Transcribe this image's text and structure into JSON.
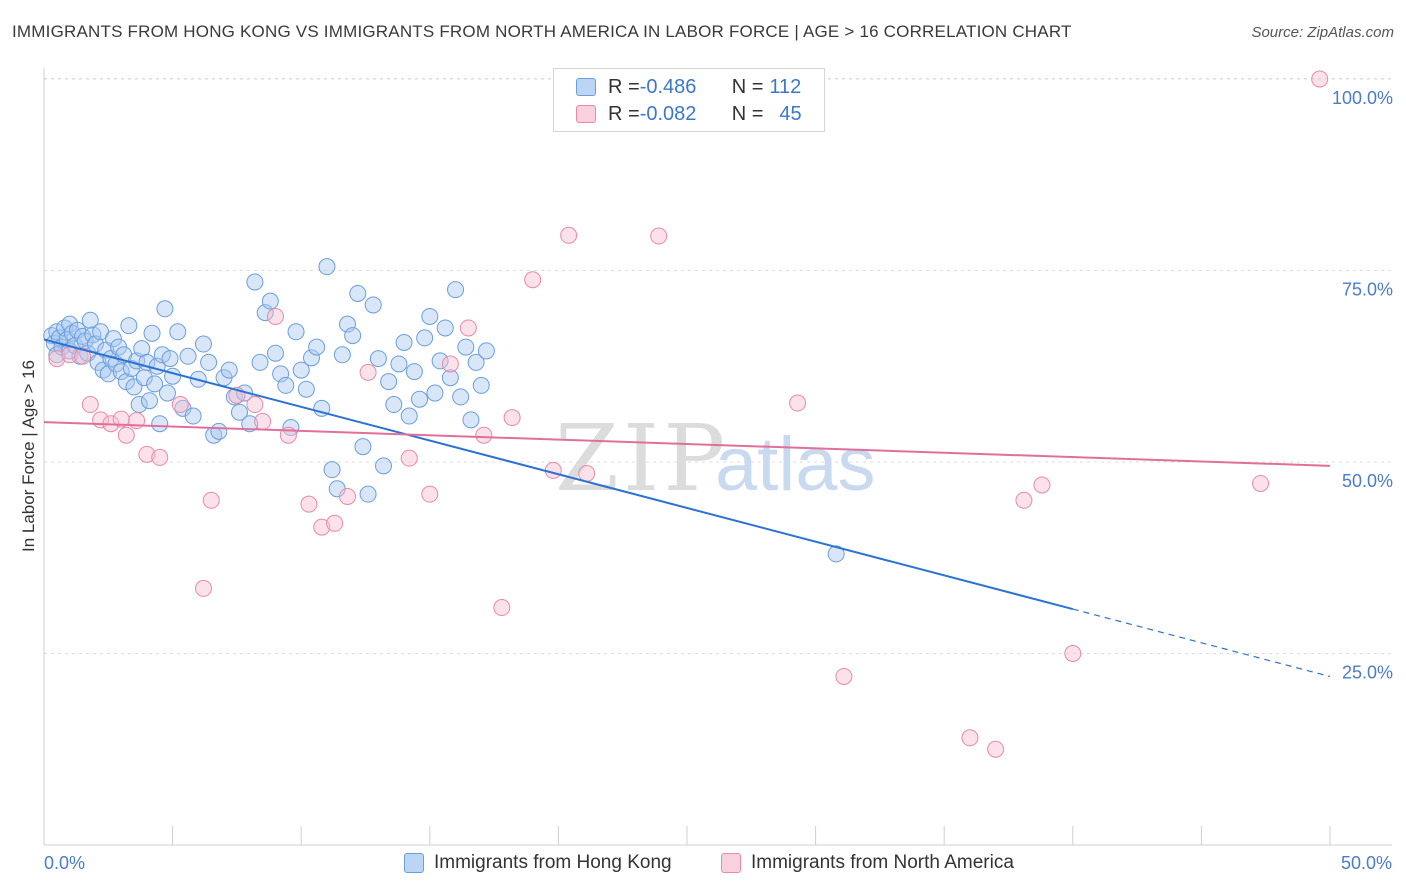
{
  "title": "IMMIGRANTS FROM HONG KONG VS IMMIGRANTS FROM NORTH AMERICA IN LABOR FORCE | AGE > 16 CORRELATION CHART",
  "source": "Source: ZipAtlas.com",
  "watermark": {
    "zip": "ZIP",
    "atlas": "atlas"
  },
  "legend": {
    "rows": [
      {
        "r_label": "R = ",
        "r_value": "-0.486",
        "n_label": "N = ",
        "n_value": "112"
      },
      {
        "r_label": "R = ",
        "r_value": "-0.082",
        "n_label": "N = ",
        "n_value": "45"
      }
    ]
  },
  "colors": {
    "blue_fill": "#a8c8f0",
    "blue_stroke": "#6a9fdc",
    "blue_line": "#2a72d4",
    "pink_fill": "#f6bfd0",
    "pink_stroke": "#e88aa8",
    "pink_line": "#e0709a",
    "axis_text": "#4a7cc8",
    "grid": "#dcdcdc"
  },
  "chart_data": {
    "type": "scatter",
    "title": "IMMIGRANTS FROM HONG KONG VS IMMIGRANTS FROM NORTH AMERICA IN LABOR FORCE | AGE > 16 CORRELATION CHART",
    "xlabel": "",
    "ylabel": "In Labor Force | Age > 16",
    "xlim": [
      0,
      50
    ],
    "ylim": [
      0,
      102
    ],
    "x_tick_labels": [
      {
        "value": 0,
        "label": "0.0%"
      },
      {
        "value": 50,
        "label": "50.0%"
      }
    ],
    "y_tick_labels": [
      {
        "value": 25,
        "label": "25.0%"
      },
      {
        "value": 50,
        "label": "50.0%"
      },
      {
        "value": 75,
        "label": "75.0%"
      },
      {
        "value": 100,
        "label": "100.0%"
      }
    ],
    "series": [
      {
        "name": "Immigrants from Hong Kong",
        "color": "blue",
        "trend": {
          "x": [
            0,
            40
          ],
          "y": [
            66.0,
            30.8
          ],
          "dashed_to": {
            "x": 50,
            "y": 22.0
          }
        },
        "points": [
          [
            0.3,
            66.5
          ],
          [
            0.4,
            65.5
          ],
          [
            0.5,
            67.0
          ],
          [
            0.5,
            64.0
          ],
          [
            0.6,
            66.2
          ],
          [
            0.7,
            65.0
          ],
          [
            0.8,
            67.5
          ],
          [
            0.9,
            66.0
          ],
          [
            1.0,
            64.5
          ],
          [
            1.0,
            68.0
          ],
          [
            1.1,
            66.8
          ],
          [
            1.2,
            65.2
          ],
          [
            1.3,
            67.2
          ],
          [
            1.4,
            63.8
          ],
          [
            1.5,
            66.4
          ],
          [
            1.6,
            65.8
          ],
          [
            1.7,
            64.2
          ],
          [
            1.8,
            68.5
          ],
          [
            1.9,
            66.6
          ],
          [
            2.0,
            65.4
          ],
          [
            2.1,
            63.0
          ],
          [
            2.2,
            67.0
          ],
          [
            2.3,
            62.0
          ],
          [
            2.4,
            64.6
          ],
          [
            2.5,
            61.5
          ],
          [
            2.6,
            63.5
          ],
          [
            2.7,
            66.1
          ],
          [
            2.8,
            62.8
          ],
          [
            2.9,
            65.0
          ],
          [
            3.0,
            61.8
          ],
          [
            3.1,
            64.0
          ],
          [
            3.2,
            60.5
          ],
          [
            3.3,
            67.8
          ],
          [
            3.4,
            62.2
          ],
          [
            3.5,
            59.8
          ],
          [
            3.6,
            63.2
          ],
          [
            3.7,
            57.5
          ],
          [
            3.8,
            64.8
          ],
          [
            3.9,
            61.0
          ],
          [
            4.0,
            63.0
          ],
          [
            4.1,
            58.0
          ],
          [
            4.2,
            66.8
          ],
          [
            4.3,
            60.2
          ],
          [
            4.4,
            62.5
          ],
          [
            4.5,
            55.0
          ],
          [
            4.6,
            64.0
          ],
          [
            4.7,
            70.0
          ],
          [
            4.8,
            59.0
          ],
          [
            4.9,
            63.5
          ],
          [
            5.0,
            61.2
          ],
          [
            5.2,
            67.0
          ],
          [
            5.4,
            57.0
          ],
          [
            5.6,
            63.8
          ],
          [
            5.8,
            56.0
          ],
          [
            6.0,
            60.8
          ],
          [
            6.2,
            65.4
          ],
          [
            6.4,
            63.0
          ],
          [
            6.6,
            53.5
          ],
          [
            6.8,
            54.0
          ],
          [
            7.0,
            61.0
          ],
          [
            7.2,
            62.0
          ],
          [
            7.4,
            58.5
          ],
          [
            7.6,
            56.5
          ],
          [
            7.8,
            59.0
          ],
          [
            8.0,
            55.0
          ],
          [
            8.2,
            73.5
          ],
          [
            8.4,
            63.0
          ],
          [
            8.6,
            69.5
          ],
          [
            8.8,
            71.0
          ],
          [
            9.0,
            64.2
          ],
          [
            9.2,
            61.5
          ],
          [
            9.4,
            60.0
          ],
          [
            9.6,
            54.5
          ],
          [
            9.8,
            67.0
          ],
          [
            10.0,
            62.0
          ],
          [
            10.2,
            59.5
          ],
          [
            10.4,
            63.6
          ],
          [
            10.6,
            65.0
          ],
          [
            10.8,
            57.0
          ],
          [
            11.0,
            75.5
          ],
          [
            11.2,
            49.0
          ],
          [
            11.4,
            46.5
          ],
          [
            11.6,
            64.0
          ],
          [
            11.8,
            68.0
          ],
          [
            12.0,
            66.5
          ],
          [
            12.2,
            72.0
          ],
          [
            12.4,
            52.0
          ],
          [
            12.6,
            45.8
          ],
          [
            12.8,
            70.5
          ],
          [
            13.0,
            63.5
          ],
          [
            13.2,
            49.5
          ],
          [
            13.4,
            60.5
          ],
          [
            13.6,
            57.5
          ],
          [
            13.8,
            62.8
          ],
          [
            14.0,
            65.6
          ],
          [
            14.2,
            56.0
          ],
          [
            14.4,
            61.8
          ],
          [
            14.6,
            58.2
          ],
          [
            14.8,
            66.2
          ],
          [
            15.0,
            69.0
          ],
          [
            15.2,
            59.0
          ],
          [
            15.4,
            63.2
          ],
          [
            15.6,
            67.5
          ],
          [
            15.8,
            61.0
          ],
          [
            16.0,
            72.5
          ],
          [
            16.2,
            58.5
          ],
          [
            16.4,
            65.0
          ],
          [
            16.6,
            55.5
          ],
          [
            16.8,
            63.0
          ],
          [
            17.0,
            60.0
          ],
          [
            17.2,
            64.5
          ],
          [
            30.8,
            38.0
          ]
        ]
      },
      {
        "name": "Immigrants from North America",
        "color": "pink",
        "trend": {
          "x": [
            0,
            50
          ],
          "y": [
            55.2,
            49.5
          ]
        },
        "points": [
          [
            0.5,
            63.5
          ],
          [
            1.0,
            64.0
          ],
          [
            1.5,
            63.8
          ],
          [
            1.8,
            57.5
          ],
          [
            2.2,
            55.5
          ],
          [
            2.6,
            55.0
          ],
          [
            3.2,
            53.5
          ],
          [
            3.6,
            55.4
          ],
          [
            4.0,
            51.0
          ],
          [
            4.5,
            50.6
          ],
          [
            5.3,
            57.5
          ],
          [
            6.2,
            33.5
          ],
          [
            6.5,
            45.0
          ],
          [
            7.5,
            58.7
          ],
          [
            8.2,
            57.5
          ],
          [
            8.5,
            55.3
          ],
          [
            9.0,
            69.0
          ],
          [
            9.5,
            53.5
          ],
          [
            10.3,
            44.5
          ],
          [
            10.8,
            41.5
          ],
          [
            11.3,
            42.0
          ],
          [
            11.8,
            45.5
          ],
          [
            12.6,
            61.7
          ],
          [
            14.2,
            50.5
          ],
          [
            15.0,
            45.8
          ],
          [
            15.8,
            62.8
          ],
          [
            16.5,
            67.5
          ],
          [
            17.1,
            53.5
          ],
          [
            18.2,
            55.8
          ],
          [
            17.8,
            31.0
          ],
          [
            19.0,
            73.8
          ],
          [
            19.8,
            48.9
          ],
          [
            20.4,
            79.6
          ],
          [
            21.1,
            48.5
          ],
          [
            23.9,
            79.5
          ],
          [
            29.3,
            57.7
          ],
          [
            31.1,
            22.0
          ],
          [
            36.0,
            14.0
          ],
          [
            37.0,
            12.5
          ],
          [
            38.1,
            45.0
          ],
          [
            38.8,
            47.0
          ],
          [
            40.0,
            25.0
          ],
          [
            47.3,
            47.2
          ],
          [
            49.6,
            100.0
          ],
          [
            3.0,
            55.6
          ]
        ]
      }
    ]
  },
  "bottom_legend": [
    {
      "label": "Immigrants from Hong Kong"
    },
    {
      "label": "Immigrants from North America"
    }
  ]
}
